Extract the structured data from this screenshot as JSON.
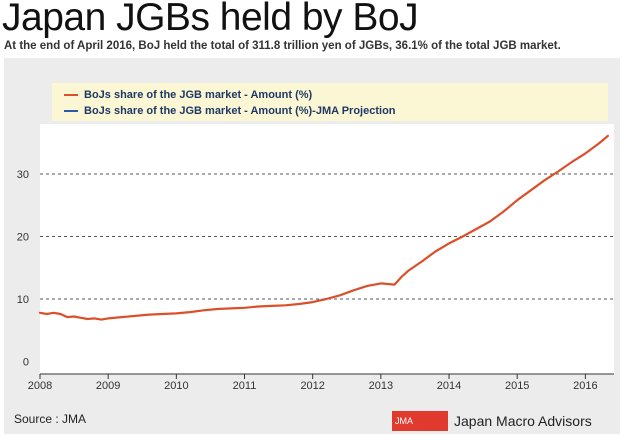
{
  "header": {
    "title": "Japan JGBs held by BoJ",
    "subtitle": "At the end of April 2016, BoJ held the total of 311.8 trillion yen of JGBs, 36.1% of the total JGB market."
  },
  "footer": {
    "source": "Source : JMA",
    "brand_badge": "JMA",
    "brand_name": "Japan Macro Advisors"
  },
  "colors": {
    "actual": "#d9502a",
    "projection": "#2a5ba8",
    "grid": "#555555",
    "axis": "#333333"
  },
  "chart_data": {
    "type": "line",
    "title": "Japan JGBs held by BoJ",
    "xlabel": "",
    "ylabel": "",
    "x_range": [
      2008.0,
      2016.42
    ],
    "ylim": [
      -2,
      38
    ],
    "x_ticks": [
      2008,
      2009,
      2010,
      2011,
      2012,
      2013,
      2014,
      2015,
      2016
    ],
    "y_ticks": [
      0,
      10,
      20,
      30
    ],
    "grid": "horizontal dashed",
    "legend": "top",
    "series": [
      {
        "name": "BoJs share of the JGB market - Amount (%)",
        "color": "#d9502a",
        "x": [
          2008.0,
          2008.1,
          2008.2,
          2008.3,
          2008.4,
          2008.5,
          2008.6,
          2008.7,
          2008.8,
          2008.9,
          2009.0,
          2009.2,
          2009.4,
          2009.6,
          2009.8,
          2010.0,
          2010.2,
          2010.4,
          2010.6,
          2010.8,
          2011.0,
          2011.2,
          2011.4,
          2011.6,
          2011.8,
          2012.0,
          2012.2,
          2012.4,
          2012.6,
          2012.8,
          2013.0,
          2013.2,
          2013.3,
          2013.4,
          2013.6,
          2013.8,
          2014.0,
          2014.2,
          2014.4,
          2014.6,
          2014.8,
          2015.0,
          2015.2,
          2015.4,
          2015.6,
          2015.8,
          2016.0,
          2016.2,
          2016.33
        ],
        "values": [
          7.8,
          7.6,
          7.8,
          7.6,
          7.1,
          7.2,
          7.0,
          6.8,
          6.9,
          6.7,
          6.9,
          7.1,
          7.3,
          7.5,
          7.6,
          7.7,
          7.9,
          8.2,
          8.4,
          8.5,
          8.6,
          8.8,
          8.9,
          9.0,
          9.2,
          9.5,
          10.0,
          10.6,
          11.4,
          12.1,
          12.5,
          12.3,
          13.5,
          14.5,
          16.0,
          17.6,
          18.9,
          20.0,
          21.2,
          22.4,
          24.0,
          25.8,
          27.4,
          29.0,
          30.4,
          31.9,
          33.3,
          34.9,
          36.1
        ]
      },
      {
        "name": "BoJs share of the JGB market - Amount (%)-JMA Projection",
        "color": "#2a5ba8",
        "x": [],
        "values": []
      }
    ]
  }
}
